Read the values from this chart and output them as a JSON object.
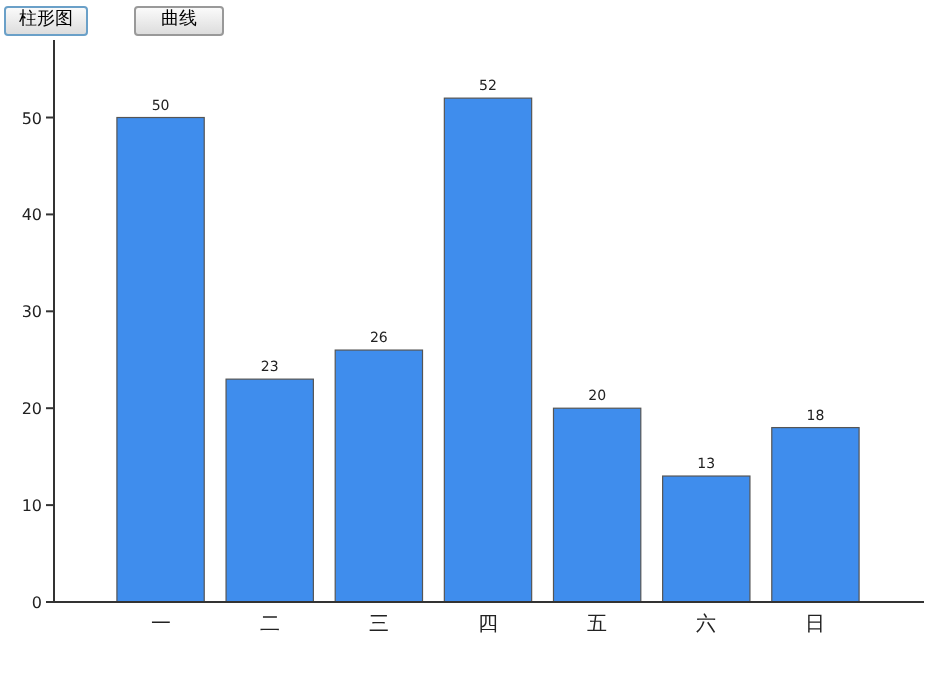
{
  "chart_data": {
    "type": "bar",
    "categories": [
      "一",
      "二",
      "三",
      "四",
      "五",
      "六",
      "日"
    ],
    "values": [
      50,
      23,
      26,
      52,
      20,
      13,
      18
    ],
    "color": "#3f8ded",
    "data_labels": true,
    "ylim": [
      0,
      58
    ],
    "yticks": [
      0,
      10,
      20,
      30,
      40,
      50
    ],
    "grid": false,
    "annotations": [
      "柱形图",
      "曲线"
    ]
  }
}
